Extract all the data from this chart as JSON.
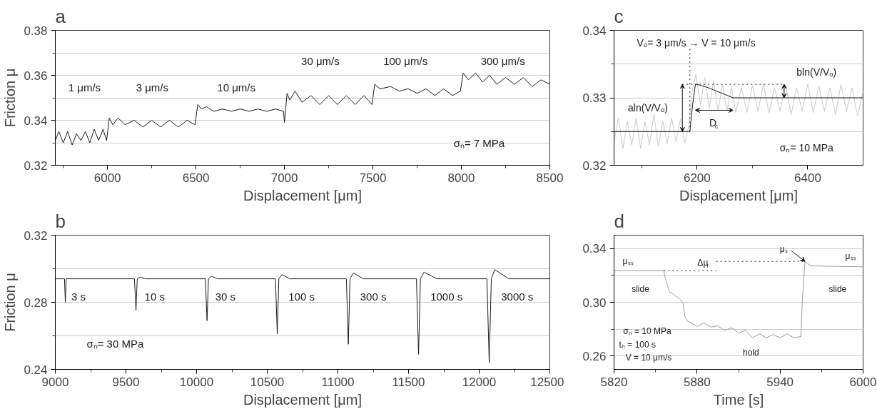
{
  "chart_data": [
    {
      "type": "line",
      "title": "a",
      "xlabel": "Displacement [μm]",
      "ylabel": "Friction μ",
      "xlim": [
        5705,
        8500
      ],
      "ylim": [
        0.32,
        0.38
      ],
      "xticks": [
        {
          "value": 5750,
          "label": null
        },
        6000,
        {
          "value": 6250,
          "label": null
        },
        6500,
        {
          "value": 6750,
          "label": null
        },
        7000,
        {
          "value": 7250,
          "label": null
        },
        7500,
        {
          "value": 7750,
          "label": null
        },
        8000,
        {
          "value": 8250,
          "label": null
        },
        8500
      ],
      "yticks": [
        0.32,
        {
          "value": 0.33,
          "label": null
        },
        0.34,
        {
          "value": 0.35,
          "label": null
        },
        0.36,
        {
          "value": 0.37,
          "label": null
        },
        0.38
      ],
      "grid": "y",
      "series": [
        {
          "color": "#1a1a1a",
          "x": [
            5705,
            5725,
            5750,
            5775,
            5800,
            5825,
            5850,
            5875,
            5900,
            5925,
            5950,
            5975,
            5995,
            6010,
            6030,
            6060,
            6100,
            6150,
            6200,
            6250,
            6300,
            6350,
            6400,
            6450,
            6495,
            6510,
            6530,
            6560,
            6600,
            6650,
            6700,
            6750,
            6800,
            6850,
            6900,
            6950,
            6995,
            7000,
            7015,
            7030,
            7060,
            7100,
            7150,
            7200,
            7250,
            7300,
            7350,
            7400,
            7450,
            7495,
            7510,
            7540,
            7600,
            7650,
            7700,
            7750,
            7800,
            7850,
            7900,
            7950,
            7995,
            8010,
            8040,
            8080,
            8120,
            8160,
            8200,
            8250,
            8300,
            8350,
            8400,
            8450,
            8500
          ],
          "values": [
            0.331,
            0.335,
            0.33,
            0.335,
            0.329,
            0.334,
            0.331,
            0.335,
            0.33,
            0.336,
            0.331,
            0.336,
            0.331,
            0.341,
            0.338,
            0.341,
            0.338,
            0.34,
            0.337,
            0.34,
            0.337,
            0.34,
            0.337,
            0.34,
            0.338,
            0.347,
            0.345,
            0.346,
            0.344,
            0.345,
            0.344,
            0.345,
            0.344,
            0.345,
            0.344,
            0.345,
            0.344,
            0.339,
            0.352,
            0.349,
            0.353,
            0.348,
            0.351,
            0.347,
            0.351,
            0.347,
            0.351,
            0.347,
            0.351,
            0.347,
            0.356,
            0.354,
            0.355,
            0.353,
            0.354,
            0.352,
            0.354,
            0.351,
            0.354,
            0.351,
            0.353,
            0.361,
            0.358,
            0.361,
            0.357,
            0.36,
            0.356,
            0.359,
            0.356,
            0.359,
            0.355,
            0.358,
            0.356
          ]
        }
      ],
      "annotations": [
        "1 μm/s",
        "3 μm/s",
        "10 μm/s",
        "30 μm/s",
        "100 μm/s",
        "300 μm/s",
        "σₙ= 7 MPa"
      ]
    },
    {
      "type": "line",
      "title": "b",
      "xlabel": "Displacement [μm]",
      "ylabel": "Friction μ",
      "xlim": [
        9000,
        12500
      ],
      "ylim": [
        0.24,
        0.32
      ],
      "xticks": [
        9000,
        {
          "value": 9250,
          "label": null
        },
        9500,
        {
          "value": 9750,
          "label": null
        },
        10000,
        {
          "value": 10250,
          "label": null
        },
        10500,
        {
          "value": 10750,
          "label": null
        },
        11000,
        {
          "value": 11250,
          "label": null
        },
        11500,
        {
          "value": 11750,
          "label": null
        },
        12000,
        {
          "value": 12250,
          "label": null
        },
        12500
      ],
      "yticks": [
        0.24,
        {
          "value": 0.26,
          "label": null
        },
        0.28,
        {
          "value": 0.3,
          "label": null
        },
        0.32
      ],
      "grid": "y",
      "series": [
        {
          "color": "#1a1a1a",
          "x": [
            9000,
            9065,
            9071,
            9077,
            9560,
            9571,
            9580,
            9600,
            9640,
            10062,
            10074,
            10084,
            10105,
            10150,
            10558,
            10571,
            10582,
            10605,
            10660,
            11060,
            11074,
            11086,
            11110,
            11180,
            11556,
            11571,
            11584,
            11610,
            11700,
            12055,
            12071,
            12086,
            12110,
            12210,
            12500
          ],
          "values": [
            0.294,
            0.294,
            0.28,
            0.294,
            0.294,
            0.275,
            0.294,
            0.295,
            0.294,
            0.294,
            0.269,
            0.294,
            0.2955,
            0.294,
            0.294,
            0.261,
            0.294,
            0.2965,
            0.294,
            0.294,
            0.255,
            0.294,
            0.2975,
            0.294,
            0.294,
            0.249,
            0.294,
            0.298,
            0.294,
            0.294,
            0.244,
            0.294,
            0.2995,
            0.294,
            0.294
          ]
        }
      ],
      "annotations": [
        "3 s",
        "10 s",
        "30 s",
        "100 s",
        "300 s",
        "1000 s",
        "3000 s",
        "σₙ= 30 MPa"
      ]
    },
    {
      "type": "line",
      "title": "c",
      "xlabel": "Displacement [μm]",
      "xlim": [
        6050,
        6500
      ],
      "ylim": [
        0.32,
        0.34
      ],
      "xticks": [
        {
          "value": 6100,
          "label": null
        },
        6200,
        {
          "value": 6300,
          "label": null
        },
        6400
      ],
      "yticks": [
        0.32,
        {
          "value": 0.325,
          "label": null
        },
        0.33,
        {
          "value": 0.335,
          "label": null
        },
        0.34
      ],
      "grid": "y",
      "series": [
        {
          "color": "#c8cacc",
          "x": [
            6050,
            6058,
            6066,
            6074,
            6082,
            6090,
            6098,
            6106,
            6114,
            6122,
            6130,
            6138,
            6146,
            6154,
            6162,
            6170,
            6178,
            6186,
            6190,
            6198,
            6206,
            6214,
            6222,
            6230,
            6238,
            6246,
            6254,
            6262,
            6270,
            6280,
            6290,
            6300,
            6310,
            6320,
            6330,
            6340,
            6350,
            6360,
            6370,
            6380,
            6390,
            6400,
            6410,
            6420,
            6430,
            6440,
            6450,
            6460,
            6470,
            6480,
            6490,
            6500
          ],
          "values": [
            0.3235,
            0.327,
            0.3225,
            0.3265,
            0.323,
            0.327,
            0.3225,
            0.3265,
            0.323,
            0.3275,
            0.3228,
            0.3265,
            0.3232,
            0.327,
            0.3235,
            0.3268,
            0.3233,
            0.3262,
            0.3305,
            0.3335,
            0.329,
            0.333,
            0.3285,
            0.3325,
            0.328,
            0.332,
            0.328,
            0.3315,
            0.3278,
            0.3315,
            0.3278,
            0.3318,
            0.328,
            0.332,
            0.3277,
            0.3315,
            0.328,
            0.332,
            0.3275,
            0.3315,
            0.328,
            0.332,
            0.3278,
            0.3318,
            0.328,
            0.3315,
            0.3275,
            0.332,
            0.328,
            0.3315,
            0.3273,
            0.331
          ]
        },
        {
          "color": "#1a1a1a",
          "x": [
            6050,
            6187,
            6192,
            6197,
            6200,
            6220,
            6250,
            6265,
            6300,
            6500
          ],
          "values": [
            0.325,
            0.325,
            0.329,
            0.332,
            0.332,
            0.3315,
            0.3305,
            0.33,
            0.33,
            0.33
          ]
        }
      ],
      "annotations": [
        "Vₒ= 3 μm/s → V = 10 μm/s",
        "aln(V/Vₒ)",
        "bln(V/Vₒ)",
        "D$_{c}$",
        "σₙ= 10 MPa"
      ],
      "ref_lines": [
        {
          "axis": "x",
          "value": 6187,
          "line_style": "dotted"
        }
      ]
    },
    {
      "type": "line",
      "title": "d",
      "xlabel": "Time [s]",
      "xlim": [
        5820,
        6000
      ],
      "ylim": [
        0.25,
        0.35
      ],
      "xticks": [
        5820,
        {
          "value": 5850,
          "label": null
        },
        5880,
        {
          "value": 5910,
          "label": null
        },
        5940,
        {
          "value": 5970,
          "label": null
        },
        6000
      ],
      "yticks": [
        0.26,
        {
          "value": 0.28,
          "label": null
        },
        {
          "value": 0.3,
          "label": "0.30"
        },
        {
          "value": 0.32,
          "label": null
        },
        0.34
      ],
      "grid": "y",
      "series": [
        {
          "color": "#9a9a9a",
          "x": [
            5820,
            5830,
            5840,
            5850,
            5856,
            5857,
            5860,
            5864,
            5868,
            5870,
            5871,
            5873,
            5875,
            5880,
            5885,
            5890,
            5895,
            5900,
            5905,
            5910,
            5915,
            5920,
            5925,
            5930,
            5935,
            5940,
            5945,
            5950,
            5955,
            5956,
            5958,
            5962,
            5970,
            5980,
            5990,
            6000
          ],
          "values": [
            0.3235,
            0.3235,
            0.3235,
            0.3235,
            0.3235,
            0.318,
            0.308,
            0.305,
            0.302,
            0.299,
            0.29,
            0.286,
            0.285,
            0.282,
            0.2845,
            0.2815,
            0.2825,
            0.279,
            0.281,
            0.277,
            0.279,
            0.2735,
            0.2765,
            0.2735,
            0.276,
            0.2735,
            0.2765,
            0.2735,
            0.2745,
            0.3,
            0.3305,
            0.3272,
            0.327,
            0.3268,
            0.3266,
            0.3265
          ]
        }
      ],
      "annotations": [
        "μₛₛ",
        "Δμ$_{f}$",
        {
          "text": "μₛ",
          "x": 5958,
          "y": 0.3305
        },
        "μₛₛ",
        "slide",
        "slide",
        "hold",
        "σₙ = 10 MPa",
        "tₕ = 100 s",
        "V = 10 μm/s"
      ],
      "ref_lines": [
        {
          "axis": "y",
          "value": 0.3235,
          "line_style": "dotted"
        },
        {
          "axis": "y",
          "value": 0.3305,
          "line_style": "dotted"
        }
      ]
    }
  ]
}
